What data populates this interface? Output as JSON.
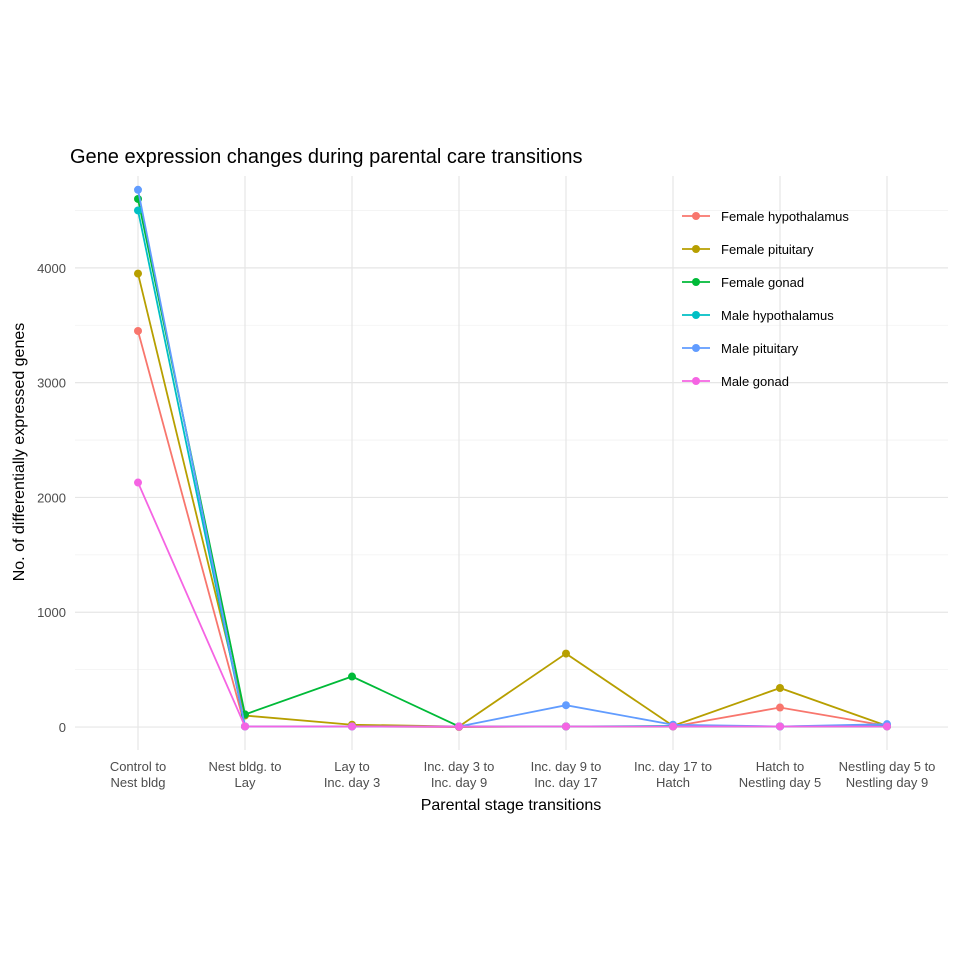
{
  "chart_data": {
    "type": "line",
    "title": "Gene expression changes during parental care transitions",
    "xlabel": "Parental stage transitions",
    "ylabel": "No. of differentially expressed genes",
    "categories": [
      [
        "Control to",
        "Nest bldg"
      ],
      [
        "Nest bldg. to",
        "Lay"
      ],
      [
        "Lay to",
        "Inc. day 3"
      ],
      [
        "Inc. day 3 to",
        "Inc. day 9"
      ],
      [
        "Inc. day 9 to",
        "Inc. day 17"
      ],
      [
        "Inc. day 17 to",
        "Hatch"
      ],
      [
        "Hatch to",
        "Nestling day 5"
      ],
      [
        "Nestling day 5 to",
        "Nestling day 9"
      ]
    ],
    "yticks": [
      0,
      1000,
      2000,
      3000,
      4000
    ],
    "ylim": [
      -200,
      4800
    ],
    "grid": true,
    "legend_position": "top-right",
    "series": [
      {
        "name": "Female hypothalamus",
        "color": "#F8766D",
        "values": [
          3450,
          5,
          5,
          0,
          5,
          5,
          170,
          10
        ]
      },
      {
        "name": "Female pituitary",
        "color": "#B79F00",
        "values": [
          3950,
          100,
          20,
          5,
          640,
          10,
          340,
          10
        ]
      },
      {
        "name": "Female gonad",
        "color": "#00BA38",
        "values": [
          4600,
          110,
          440,
          5,
          5,
          5,
          5,
          5
        ]
      },
      {
        "name": "Male hypothalamus",
        "color": "#00BFC4",
        "values": [
          4500,
          5,
          5,
          5,
          5,
          10,
          5,
          15
        ]
      },
      {
        "name": "Male pituitary",
        "color": "#619CFF",
        "values": [
          4680,
          5,
          5,
          5,
          190,
          20,
          5,
          25
        ]
      },
      {
        "name": "Male gonad",
        "color": "#F564E3",
        "values": [
          2130,
          5,
          5,
          5,
          5,
          5,
          5,
          5
        ]
      }
    ]
  }
}
